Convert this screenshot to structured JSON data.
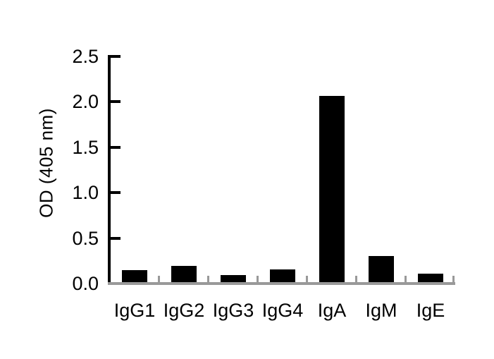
{
  "chart_data": {
    "type": "bar",
    "title": "",
    "categories": [
      "IgG1",
      "IgG2",
      "IgG3",
      "IgG4",
      "IgA",
      "IgM",
      "IgE"
    ],
    "values": [
      0.13,
      0.18,
      0.08,
      0.14,
      2.05,
      0.29,
      0.09
    ],
    "xlabel": "",
    "ylabel": "OD (405 nm)",
    "ylim": [
      0,
      2.5
    ],
    "yticks": [
      0.0,
      0.5,
      1.0,
      1.5,
      2.0,
      2.5
    ],
    "ytick_labels": [
      "0.0",
      "0.5",
      "1.0",
      "1.5",
      "2.0",
      "2.5"
    ],
    "grid": false,
    "legend_position": "none",
    "bar_color": "#000000",
    "y_axis_color": "#000000",
    "x_axis_color": "#999999",
    "text_color": "#000000",
    "background": "#ffffff"
  }
}
